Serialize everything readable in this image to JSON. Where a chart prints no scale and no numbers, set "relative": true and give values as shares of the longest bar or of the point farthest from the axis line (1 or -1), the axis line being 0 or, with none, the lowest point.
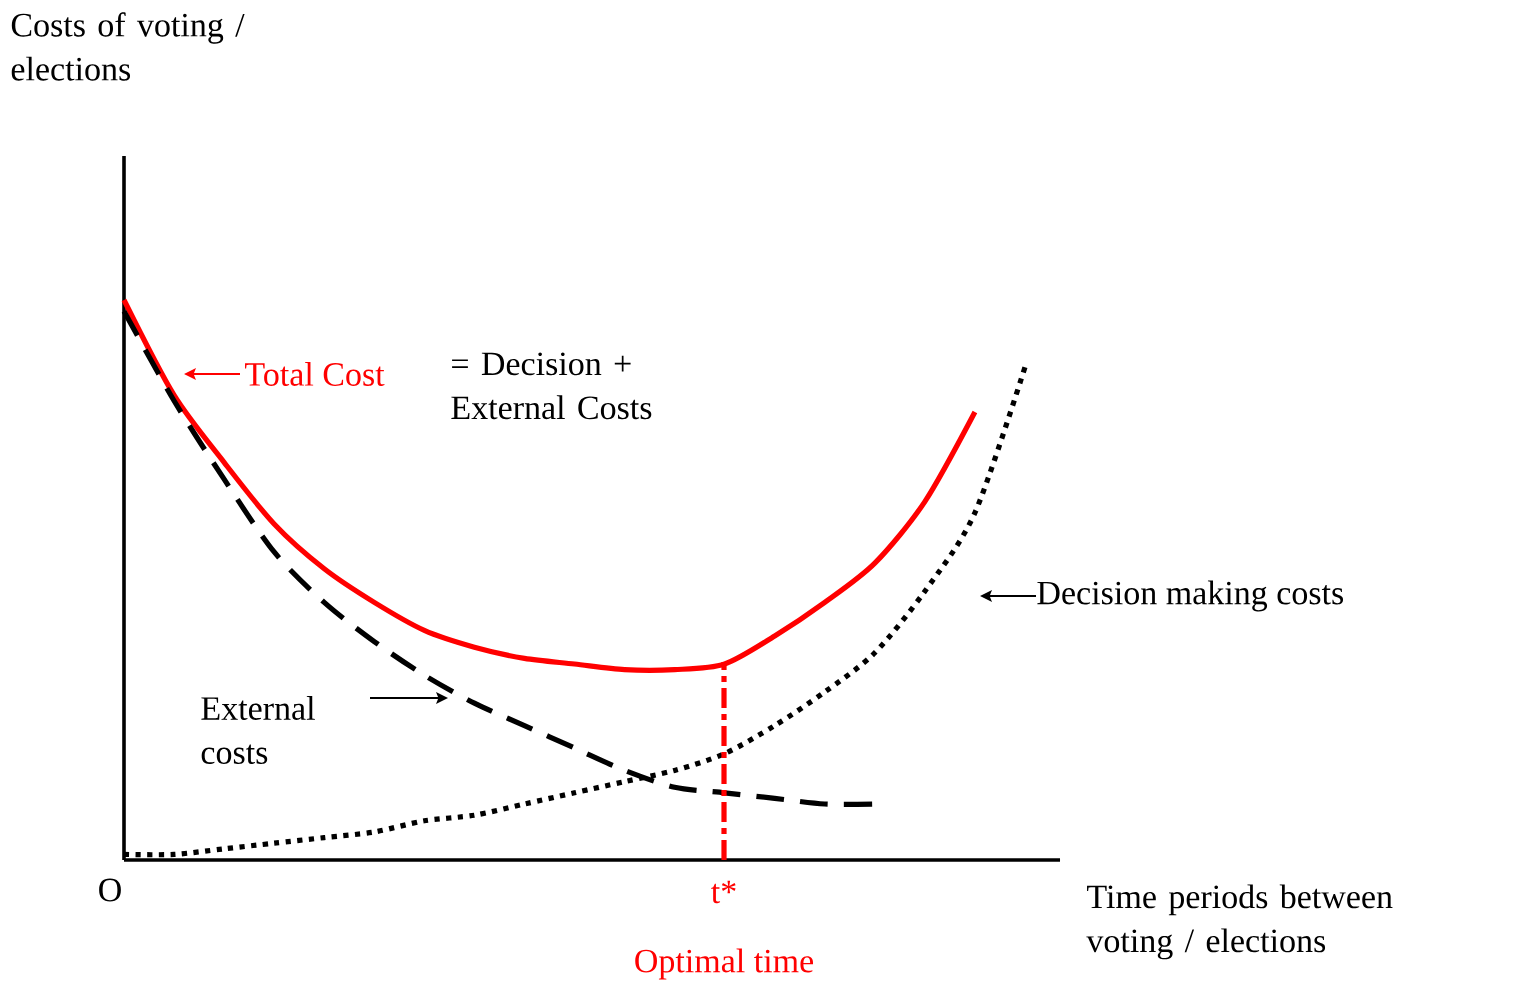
{
  "chart_data": {
    "type": "line",
    "relative": true,
    "xlabel": "Time periods between voting / elections",
    "categories": [
      null,
      null,
      null,
      null,
      null,
      null,
      null,
      null,
      null,
      null,
      null,
      null,
      null,
      null,
      null,
      null,
      null,
      null,
      null
    ],
    "grid": false,
    "legend": "right",
    "series": [
      {
        "name": "Total Cost",
        "color": "#ff0000",
        "line_style": "solid",
        "values": [
          1.0,
          0.83,
          0.71,
          0.6,
          0.52,
          0.46,
          0.41,
          0.38,
          0.36,
          0.35,
          0.34,
          0.34,
          0.35,
          0.4,
          0.46,
          0.53,
          0.64,
          0.8,
          null
        ]
      },
      {
        "name": "Decision making costs",
        "color": "#000000",
        "line_style": "dotted",
        "values": [
          0.01,
          0.01,
          0.02,
          0.03,
          0.04,
          0.05,
          0.07,
          0.08,
          0.1,
          0.12,
          0.14,
          0.16,
          0.19,
          0.24,
          0.3,
          0.37,
          0.48,
          0.62,
          0.88
        ]
      },
      {
        "name": "External costs",
        "color": "#000000",
        "line_style": "dashed",
        "values": [
          0.98,
          0.82,
          0.68,
          0.55,
          0.46,
          0.39,
          0.33,
          0.28,
          0.24,
          0.2,
          0.16,
          0.13,
          0.12,
          0.11,
          0.1,
          0.1,
          null,
          null,
          null
        ]
      }
    ],
    "annotations": [
      "= Decision + External Costs",
      "O",
      "Optimal time",
      "t*",
      "Costs of voting / elections"
    ]
  }
}
